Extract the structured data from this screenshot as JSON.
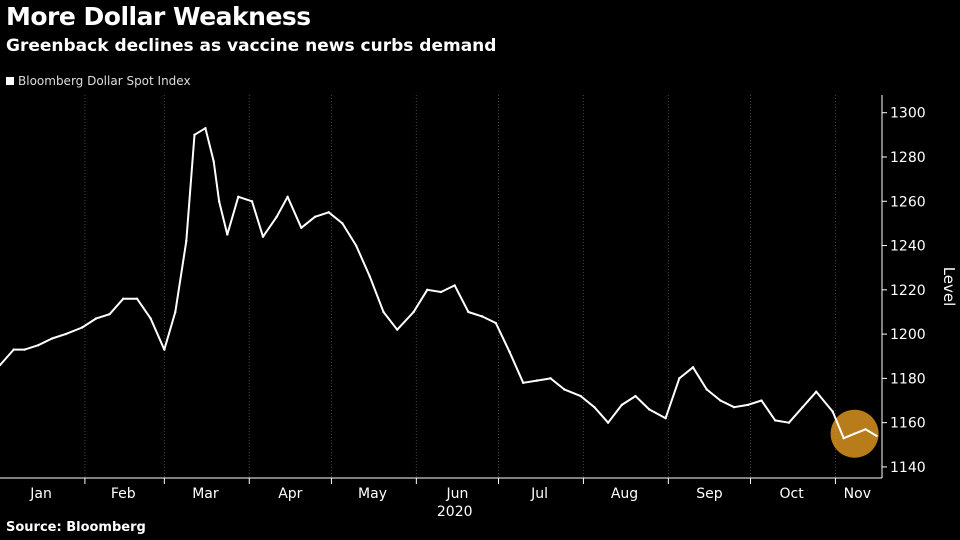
{
  "header": {
    "title": "More Dollar Weakness",
    "subtitle": "Greenback declines as vaccine news curbs demand"
  },
  "legend": {
    "label": "Bloomberg Dollar Spot Index"
  },
  "footer": {
    "source": "Source: Bloomberg"
  },
  "colors": {
    "background": "#000000",
    "line": "#ffffff",
    "grid": "#444444",
    "highlight": "#f5a623"
  },
  "chart_data": {
    "type": "line",
    "title": "More Dollar Weakness",
    "subtitle": "Greenback declines as vaccine news curbs demand",
    "xlabel": "2020",
    "ylabel": "Level",
    "ylim": [
      1135,
      1308
    ],
    "yticks": [
      1140,
      1160,
      1180,
      1200,
      1220,
      1240,
      1260,
      1280,
      1300
    ],
    "ytick_labels": [
      "1140",
      "1160",
      "1180",
      "1200",
      "1220",
      "1240",
      "1260",
      "1280",
      "1300"
    ],
    "month_labels": [
      "Jan",
      "Feb",
      "Mar",
      "Apr",
      "May",
      "Jun",
      "Jul",
      "Aug",
      "Sep",
      "Oct",
      "Nov"
    ],
    "x_start": "2020-01-01",
    "x_end": "2020-11-18",
    "grid": "vertical",
    "legend_position": "top-left",
    "highlight": "mid-November 2020",
    "series": [
      {
        "name": "Bloomberg Dollar Spot Index",
        "x": [
          "2020-01-01",
          "2020-01-06",
          "2020-01-10",
          "2020-01-15",
          "2020-01-20",
          "2020-01-25",
          "2020-01-31",
          "2020-02-05",
          "2020-02-10",
          "2020-02-15",
          "2020-02-20",
          "2020-02-25",
          "2020-03-01",
          "2020-03-05",
          "2020-03-09",
          "2020-03-12",
          "2020-03-16",
          "2020-03-19",
          "2020-03-21",
          "2020-03-24",
          "2020-03-28",
          "2020-04-02",
          "2020-04-06",
          "2020-04-11",
          "2020-04-15",
          "2020-04-20",
          "2020-04-25",
          "2020-04-30",
          "2020-05-05",
          "2020-05-10",
          "2020-05-15",
          "2020-05-20",
          "2020-05-25",
          "2020-05-31",
          "2020-06-05",
          "2020-06-10",
          "2020-06-15",
          "2020-06-20",
          "2020-06-25",
          "2020-06-30",
          "2020-07-05",
          "2020-07-10",
          "2020-07-15",
          "2020-07-20",
          "2020-07-25",
          "2020-07-31",
          "2020-08-05",
          "2020-08-10",
          "2020-08-15",
          "2020-08-20",
          "2020-08-25",
          "2020-08-31",
          "2020-09-05",
          "2020-09-10",
          "2020-09-15",
          "2020-09-20",
          "2020-09-25",
          "2020-09-30",
          "2020-10-05",
          "2020-10-10",
          "2020-10-15",
          "2020-10-20",
          "2020-10-25",
          "2020-10-31",
          "2020-11-04",
          "2020-11-08",
          "2020-11-12",
          "2020-11-16"
        ],
        "values": [
          1186,
          1193,
          1193,
          1195,
          1198,
          1200,
          1203,
          1207,
          1209,
          1216,
          1216,
          1207,
          1193,
          1210,
          1242,
          1290,
          1293,
          1278,
          1260,
          1245,
          1262,
          1260,
          1244,
          1253,
          1262,
          1248,
          1253,
          1255,
          1250,
          1240,
          1226,
          1210,
          1202,
          1210,
          1220,
          1219,
          1222,
          1210,
          1208,
          1205,
          1192,
          1178,
          1179,
          1180,
          1175,
          1172,
          1167,
          1160,
          1168,
          1172,
          1166,
          1162,
          1180,
          1185,
          1175,
          1170,
          1167,
          1168,
          1170,
          1161,
          1160,
          1167,
          1174,
          1165,
          1153,
          1155,
          1157,
          1154
        ]
      }
    ]
  }
}
